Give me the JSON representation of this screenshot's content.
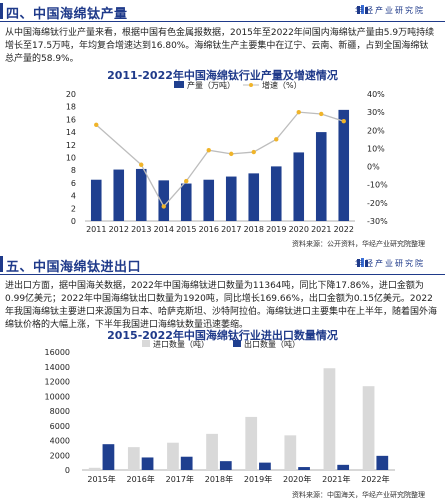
{
  "brand": {
    "name": "华经产业研究院"
  },
  "section4": {
    "title": "四、中国海绵钛产量",
    "paragraph": "从中国海绵钛行业产量来看，根据中国有色金属报数据，2015年至2022年间国内海绵钛产量由5.9万吨持续增长至17.5万吨，年均复合增速达到16.80%。海绵钛生产主要集中在辽宁、云南、新疆，占到全国海绵钛总产量的58.9%。",
    "chart_title": "2011-2022年中国海绵钛行业产量及增速情况",
    "source": "资料来源：公开资料，华经产业研究院整理"
  },
  "section5": {
    "title": "五、中国海绵钛进出口",
    "paragraph": "进出口方面，据中国海关数据，2022年中国海绵钛进口数量为11364吨，同比下降17.86%，进口金额为0.99亿美元；2022年中国海绵钛出口数量为1920吨，同比增长169.66%，出口金额为0.15亿美元。2022年我国海绵钛主要进口来源国为日本、哈萨克斯坦、沙特阿拉伯。海绵钛进口主要集中在上半年，随着国外海绵钛价格的大幅上涨，下半年我国进口海绵钛数量迅速萎缩。",
    "chart_title": "2015-2022年中国海绵钛行业进出口数量情况",
    "source": "资料来源：中国海关，华经产业研究院整理"
  },
  "colors": {
    "navy": "#1f3a8a",
    "bar": "#1f3f8f",
    "line": "#bdbdbd",
    "marker": "#f0b429",
    "import_bar": "#d9d9d9"
  },
  "chart_data": [
    {
      "type": "bar",
      "title": "2011-2022年中国海绵钛行业产量及增速情况",
      "categories": [
        "2011",
        "2012",
        "2013",
        "2014",
        "2015",
        "2016",
        "2017",
        "2018",
        "2019",
        "2020",
        "2021",
        "2022"
      ],
      "series": [
        {
          "name": "产量（万吨）",
          "type": "bar",
          "axis": "left",
          "values": [
            6.5,
            8.1,
            8.2,
            6.4,
            5.9,
            6.5,
            7.0,
            7.5,
            8.6,
            10.8,
            14.0,
            17.5
          ]
        },
        {
          "name": "增速（%）",
          "type": "line",
          "axis": "right",
          "values": [
            23,
            null,
            1,
            -22,
            -8,
            9,
            7,
            8,
            15,
            30,
            29,
            25
          ]
        }
      ],
      "ylim_left": [
        0,
        20
      ],
      "ylim_right": [
        -30,
        40
      ],
      "left_ticks": [
        0,
        2,
        4,
        6,
        8,
        10,
        12,
        14,
        16,
        18,
        20
      ],
      "right_ticks": [
        "-30%",
        "-20%",
        "-10%",
        "0%",
        "10%",
        "20%",
        "30%",
        "40%"
      ],
      "legend": "top-center",
      "grid": false
    },
    {
      "type": "bar",
      "title": "2015-2022年中国海绵钛行业进出口数量情况",
      "categories": [
        "2015年",
        "2016年",
        "2017年",
        "2018年",
        "2019年",
        "2020年",
        "2021年",
        "2022年"
      ],
      "series": [
        {
          "name": "进口数量（吨）",
          "values": [
            300,
            3100,
            3700,
            4900,
            7200,
            4700,
            13800,
            11364
          ]
        },
        {
          "name": "出口数量（吨）",
          "values": [
            3500,
            1700,
            1800,
            1200,
            1000,
            400,
            700,
            1920
          ]
        }
      ],
      "ylim": [
        0,
        16000
      ],
      "ticks": [
        0,
        2000,
        4000,
        6000,
        8000,
        10000,
        12000,
        14000,
        16000
      ],
      "legend": "top-center",
      "grid": false
    }
  ]
}
